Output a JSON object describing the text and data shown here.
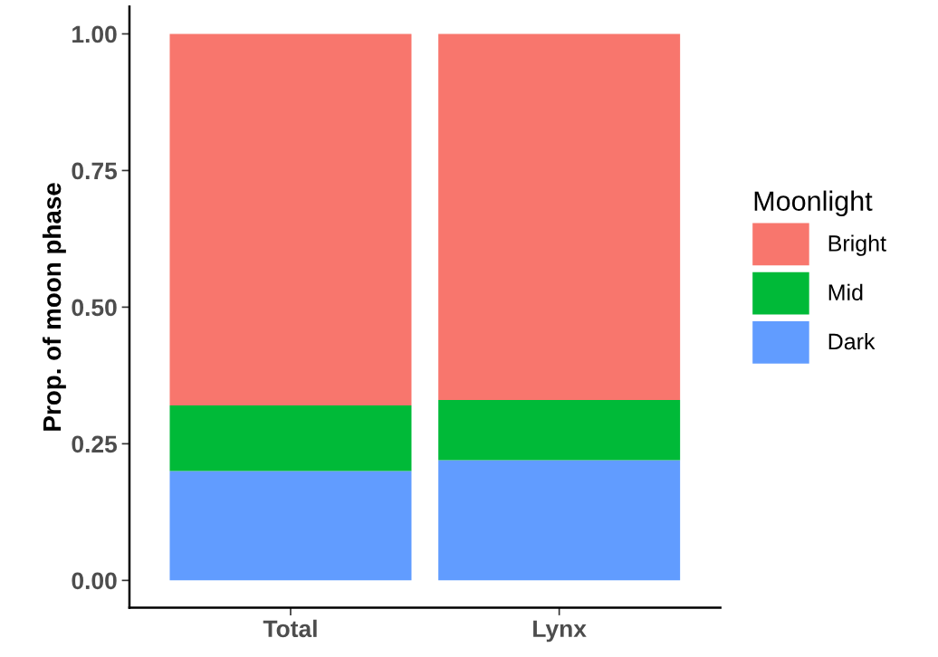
{
  "chart_data": {
    "type": "bar",
    "stacked": true,
    "ylabel": "Prop. of moon phase",
    "legend_title": "Moonlight",
    "legend": "right",
    "categories": [
      "Total",
      "Lynx"
    ],
    "series": [
      {
        "name": "Dark",
        "color": "#619cff",
        "values": [
          0.2,
          0.22
        ]
      },
      {
        "name": "Mid",
        "color": "#00ba38",
        "values": [
          0.12,
          0.11
        ]
      },
      {
        "name": "Bright",
        "color": "#f8766d",
        "values": [
          0.68,
          0.67
        ]
      }
    ],
    "ylim": [
      -0.05,
      1.05
    ],
    "yticks": [
      {
        "value": 0,
        "label": "0.00"
      },
      {
        "value": 0.25,
        "label": "0.25"
      },
      {
        "value": 0.5,
        "label": "0.50"
      },
      {
        "value": 0.75,
        "label": "0.75"
      },
      {
        "value": 1,
        "label": "1.00"
      }
    ],
    "grid": false
  }
}
